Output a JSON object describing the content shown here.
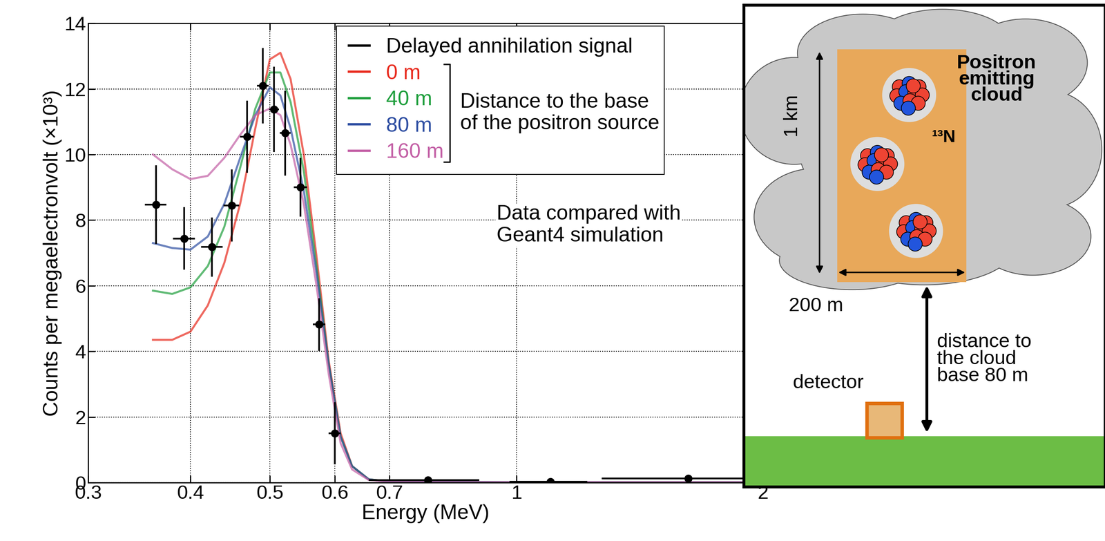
{
  "chart_data": {
    "type": "line",
    "xlabel": "Energy (MeV)",
    "ylabel": "Counts per megaelectronvolt (×10³)",
    "log": "x",
    "xlim": [
      0.3,
      2
    ],
    "xticks": [
      0.3,
      0.4,
      0.5,
      0.6,
      0.7,
      1,
      2
    ],
    "ylim": [
      0,
      14
    ],
    "yticks": [
      0,
      2,
      4,
      6,
      8,
      10,
      12,
      14
    ],
    "grid": true,
    "legend": "upper left",
    "legend_group_label": "Distance to the base\nof the positron source",
    "annotations": [
      "Data compared with\nGeant4 simulation"
    ],
    "series": [
      {
        "name": "Delayed annihilation signal",
        "type": "scatter",
        "color": "#000000",
        "marker": "o",
        "x": [
          0.363,
          0.393,
          0.425,
          0.449,
          0.469,
          0.49,
          0.506,
          0.522,
          0.545,
          0.574,
          0.6,
          0.78,
          1.1,
          1.62
        ],
        "values": [
          8.47,
          7.44,
          7.18,
          8.45,
          10.54,
          12.1,
          11.38,
          10.65,
          9.0,
          4.82,
          1.5,
          0.08,
          0.03,
          0.12
        ],
        "xerr": [
          0.011,
          0.012,
          0.013,
          0.01,
          0.009,
          0.008,
          0.007,
          0.008,
          0.01,
          0.01,
          0.01,
          0.12,
          0.12,
          0.35
        ],
        "yerr": [
          1.2,
          0.95,
          0.9,
          1.1,
          1.1,
          1.15,
          1.3,
          1.3,
          0.9,
          0.8,
          0.95,
          0.05,
          0.05,
          0.05
        ]
      },
      {
        "name": "0 m",
        "type": "line",
        "color": "#e8291c",
        "x": [
          0.36,
          0.38,
          0.4,
          0.42,
          0.44,
          0.46,
          0.48,
          0.5,
          0.515,
          0.53,
          0.55,
          0.57,
          0.59,
          0.61,
          0.63,
          0.66,
          0.7,
          1.0,
          2.0
        ],
        "values": [
          4.35,
          4.35,
          4.6,
          5.4,
          6.7,
          8.5,
          10.8,
          12.9,
          13.1,
          12.3,
          10.0,
          6.9,
          3.7,
          1.5,
          0.5,
          0.1,
          0.03,
          0.01,
          0.01
        ]
      },
      {
        "name": "40 m",
        "type": "line",
        "color": "#1e9e3c",
        "x": [
          0.36,
          0.38,
          0.4,
          0.42,
          0.44,
          0.46,
          0.48,
          0.5,
          0.515,
          0.53,
          0.55,
          0.57,
          0.59,
          0.61,
          0.63,
          0.66,
          0.7,
          1.0,
          2.0
        ],
        "values": [
          5.85,
          5.75,
          5.95,
          6.6,
          7.8,
          9.6,
          11.4,
          12.5,
          12.5,
          11.6,
          9.5,
          6.6,
          3.6,
          1.4,
          0.5,
          0.1,
          0.03,
          0.01,
          0.01
        ]
      },
      {
        "name": "80 m",
        "type": "line",
        "color": "#2e4ea2",
        "x": [
          0.36,
          0.38,
          0.4,
          0.42,
          0.44,
          0.46,
          0.48,
          0.5,
          0.515,
          0.53,
          0.55,
          0.57,
          0.59,
          0.61,
          0.63,
          0.66,
          0.7,
          1.0,
          2.0
        ],
        "values": [
          7.3,
          7.15,
          7.1,
          7.5,
          8.5,
          9.9,
          11.2,
          12.05,
          11.8,
          10.8,
          8.9,
          6.4,
          3.6,
          1.4,
          0.5,
          0.1,
          0.03,
          0.01,
          0.01
        ]
      },
      {
        "name": "160 m",
        "type": "line",
        "color": "#c35fa5",
        "x": [
          0.36,
          0.38,
          0.4,
          0.42,
          0.44,
          0.46,
          0.48,
          0.5,
          0.515,
          0.53,
          0.55,
          0.57,
          0.59,
          0.61,
          0.63,
          0.66,
          0.7,
          1.0,
          2.0
        ],
        "values": [
          10.0,
          9.55,
          9.25,
          9.35,
          9.9,
          10.6,
          11.2,
          11.4,
          11.2,
          10.3,
          8.5,
          6.0,
          3.3,
          1.2,
          0.4,
          0.08,
          0.02,
          0.01,
          0.01
        ]
      }
    ]
  },
  "inset": {
    "title": "Positron\nemitting\ncloud",
    "isotope": "¹³N",
    "height_label": "1 km",
    "width_label": "200 m",
    "detector_label": "detector",
    "distance_label": "distance to\nthe cloud\nbase 80 m"
  }
}
